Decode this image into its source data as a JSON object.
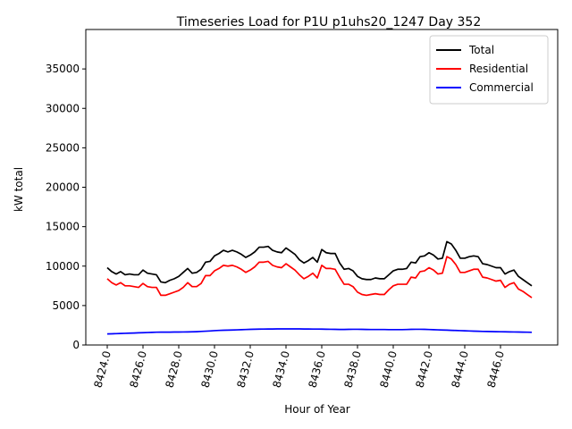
{
  "chart_data": {
    "type": "line",
    "title": "Timeseries Load for P1U p1uhs20_1247  Day 352",
    "xlabel": "Hour of Year",
    "ylabel": "kW total",
    "xlim": [
      8422.8,
      8449.2
    ],
    "ylim": [
      0,
      40000
    ],
    "xticks": [
      8424.0,
      8426.0,
      8428.0,
      8430.0,
      8432.0,
      8434.0,
      8436.0,
      8438.0,
      8440.0,
      8442.0,
      8444.0,
      8446.0
    ],
    "xtick_labels": [
      "8424.0",
      "8426.0",
      "8428.0",
      "8430.0",
      "8432.0",
      "8434.0",
      "8436.0",
      "8438.0",
      "8440.0",
      "8442.0",
      "8444.0",
      "8446.0"
    ],
    "yticks": [
      0,
      5000,
      10000,
      15000,
      20000,
      25000,
      30000,
      35000
    ],
    "ytick_labels": [
      "0",
      "5000",
      "10000",
      "15000",
      "20000",
      "25000",
      "30000",
      "35000"
    ],
    "grid": false,
    "legend_position": "top-right",
    "x": [
      8424.0,
      8424.25,
      8424.5,
      8424.75,
      8425.0,
      8425.25,
      8425.5,
      8425.75,
      8426.0,
      8426.25,
      8426.5,
      8426.75,
      8427.0,
      8427.25,
      8427.5,
      8427.75,
      8428.0,
      8428.25,
      8428.5,
      8428.75,
      8429.0,
      8429.25,
      8429.5,
      8429.75,
      8430.0,
      8430.25,
      8430.5,
      8430.75,
      8431.0,
      8431.25,
      8431.5,
      8431.75,
      8432.0,
      8432.25,
      8432.5,
      8432.75,
      8433.0,
      8433.25,
      8433.5,
      8433.75,
      8434.0,
      8434.25,
      8434.5,
      8434.75,
      8435.0,
      8435.25,
      8435.5,
      8435.75,
      8436.0,
      8436.25,
      8436.5,
      8436.75,
      8437.0,
      8437.25,
      8437.5,
      8437.75,
      8438.0,
      8438.25,
      8438.5,
      8438.75,
      8439.0,
      8439.25,
      8439.5,
      8439.75,
      8440.0,
      8440.25,
      8440.5,
      8440.75,
      8441.0,
      8441.25,
      8441.5,
      8441.75,
      8442.0,
      8442.25,
      8442.5,
      8442.75,
      8443.0,
      8443.25,
      8443.5,
      8443.75,
      8444.0,
      8444.25,
      8444.5,
      8444.75,
      8445.0,
      8445.25,
      8445.5,
      8445.75,
      8446.0,
      8446.25,
      8446.5,
      8446.75,
      8447.0,
      8447.25,
      8447.5,
      8447.75
    ],
    "series": [
      {
        "name": "Total",
        "color": "#000000",
        "values": [
          9800,
          9300,
          9000,
          9300,
          8900,
          9000,
          8900,
          8900,
          9500,
          9100,
          9000,
          8900,
          8000,
          7900,
          8200,
          8400,
          8700,
          9200,
          9700,
          9100,
          9200,
          9600,
          10500,
          10600,
          11300,
          11600,
          12000,
          11800,
          12000,
          11800,
          11500,
          11100,
          11400,
          11800,
          12400,
          12400,
          12500,
          12000,
          11800,
          11700,
          12300,
          11900,
          11500,
          10800,
          10400,
          10700,
          11100,
          10500,
          12100,
          11700,
          11600,
          11600,
          10400,
          9600,
          9700,
          9400,
          8700,
          8400,
          8300,
          8300,
          8500,
          8400,
          8400,
          8900,
          9400,
          9600,
          9600,
          9700,
          10500,
          10400,
          11200,
          11300,
          11700,
          11400,
          10900,
          11000,
          13100,
          12800,
          12000,
          11000,
          11000,
          11200,
          11300,
          11200,
          10300,
          10200,
          10000,
          9800,
          9800,
          9000,
          9300,
          9500,
          8700,
          8300,
          7900,
          7500
        ]
      },
      {
        "name": "Residential",
        "color": "#ff0000",
        "values": [
          8400,
          7900,
          7600,
          7900,
          7500,
          7500,
          7400,
          7300,
          7800,
          7400,
          7300,
          7300,
          6300,
          6300,
          6500,
          6700,
          6900,
          7300,
          7900,
          7400,
          7400,
          7800,
          8800,
          8800,
          9400,
          9700,
          10100,
          10000,
          10100,
          9900,
          9600,
          9200,
          9500,
          9900,
          10500,
          10500,
          10600,
          10100,
          9900,
          9800,
          10300,
          9900,
          9500,
          8900,
          8400,
          8700,
          9100,
          8500,
          10100,
          9700,
          9700,
          9600,
          8600,
          7700,
          7700,
          7400,
          6700,
          6400,
          6300,
          6400,
          6500,
          6400,
          6400,
          7000,
          7500,
          7700,
          7700,
          7700,
          8600,
          8500,
          9300,
          9400,
          9800,
          9500,
          9000,
          9100,
          11200,
          10900,
          10200,
          9200,
          9200,
          9400,
          9600,
          9600,
          8600,
          8500,
          8300,
          8100,
          8200,
          7300,
          7700,
          7900,
          7100,
          6800,
          6400,
          6000
        ]
      },
      {
        "name": "Commercial",
        "color": "#0000ff",
        "values": [
          1400,
          1420,
          1440,
          1460,
          1480,
          1500,
          1520,
          1540,
          1560,
          1580,
          1600,
          1620,
          1630,
          1630,
          1630,
          1640,
          1640,
          1650,
          1660,
          1670,
          1690,
          1720,
          1750,
          1780,
          1820,
          1850,
          1870,
          1880,
          1900,
          1920,
          1940,
          1960,
          1980,
          2000,
          2010,
          2020,
          2030,
          2030,
          2040,
          2040,
          2040,
          2040,
          2040,
          2040,
          2030,
          2030,
          2020,
          2020,
          2010,
          2000,
          1990,
          1980,
          1970,
          1970,
          1980,
          1990,
          1990,
          1980,
          1970,
          1960,
          1960,
          1960,
          1960,
          1950,
          1950,
          1950,
          1950,
          1960,
          1980,
          1990,
          1990,
          1980,
          1960,
          1940,
          1920,
          1900,
          1880,
          1860,
          1840,
          1820,
          1800,
          1780,
          1760,
          1740,
          1720,
          1710,
          1700,
          1690,
          1680,
          1670,
          1660,
          1650,
          1640,
          1630,
          1620,
          1610
        ]
      }
    ]
  }
}
